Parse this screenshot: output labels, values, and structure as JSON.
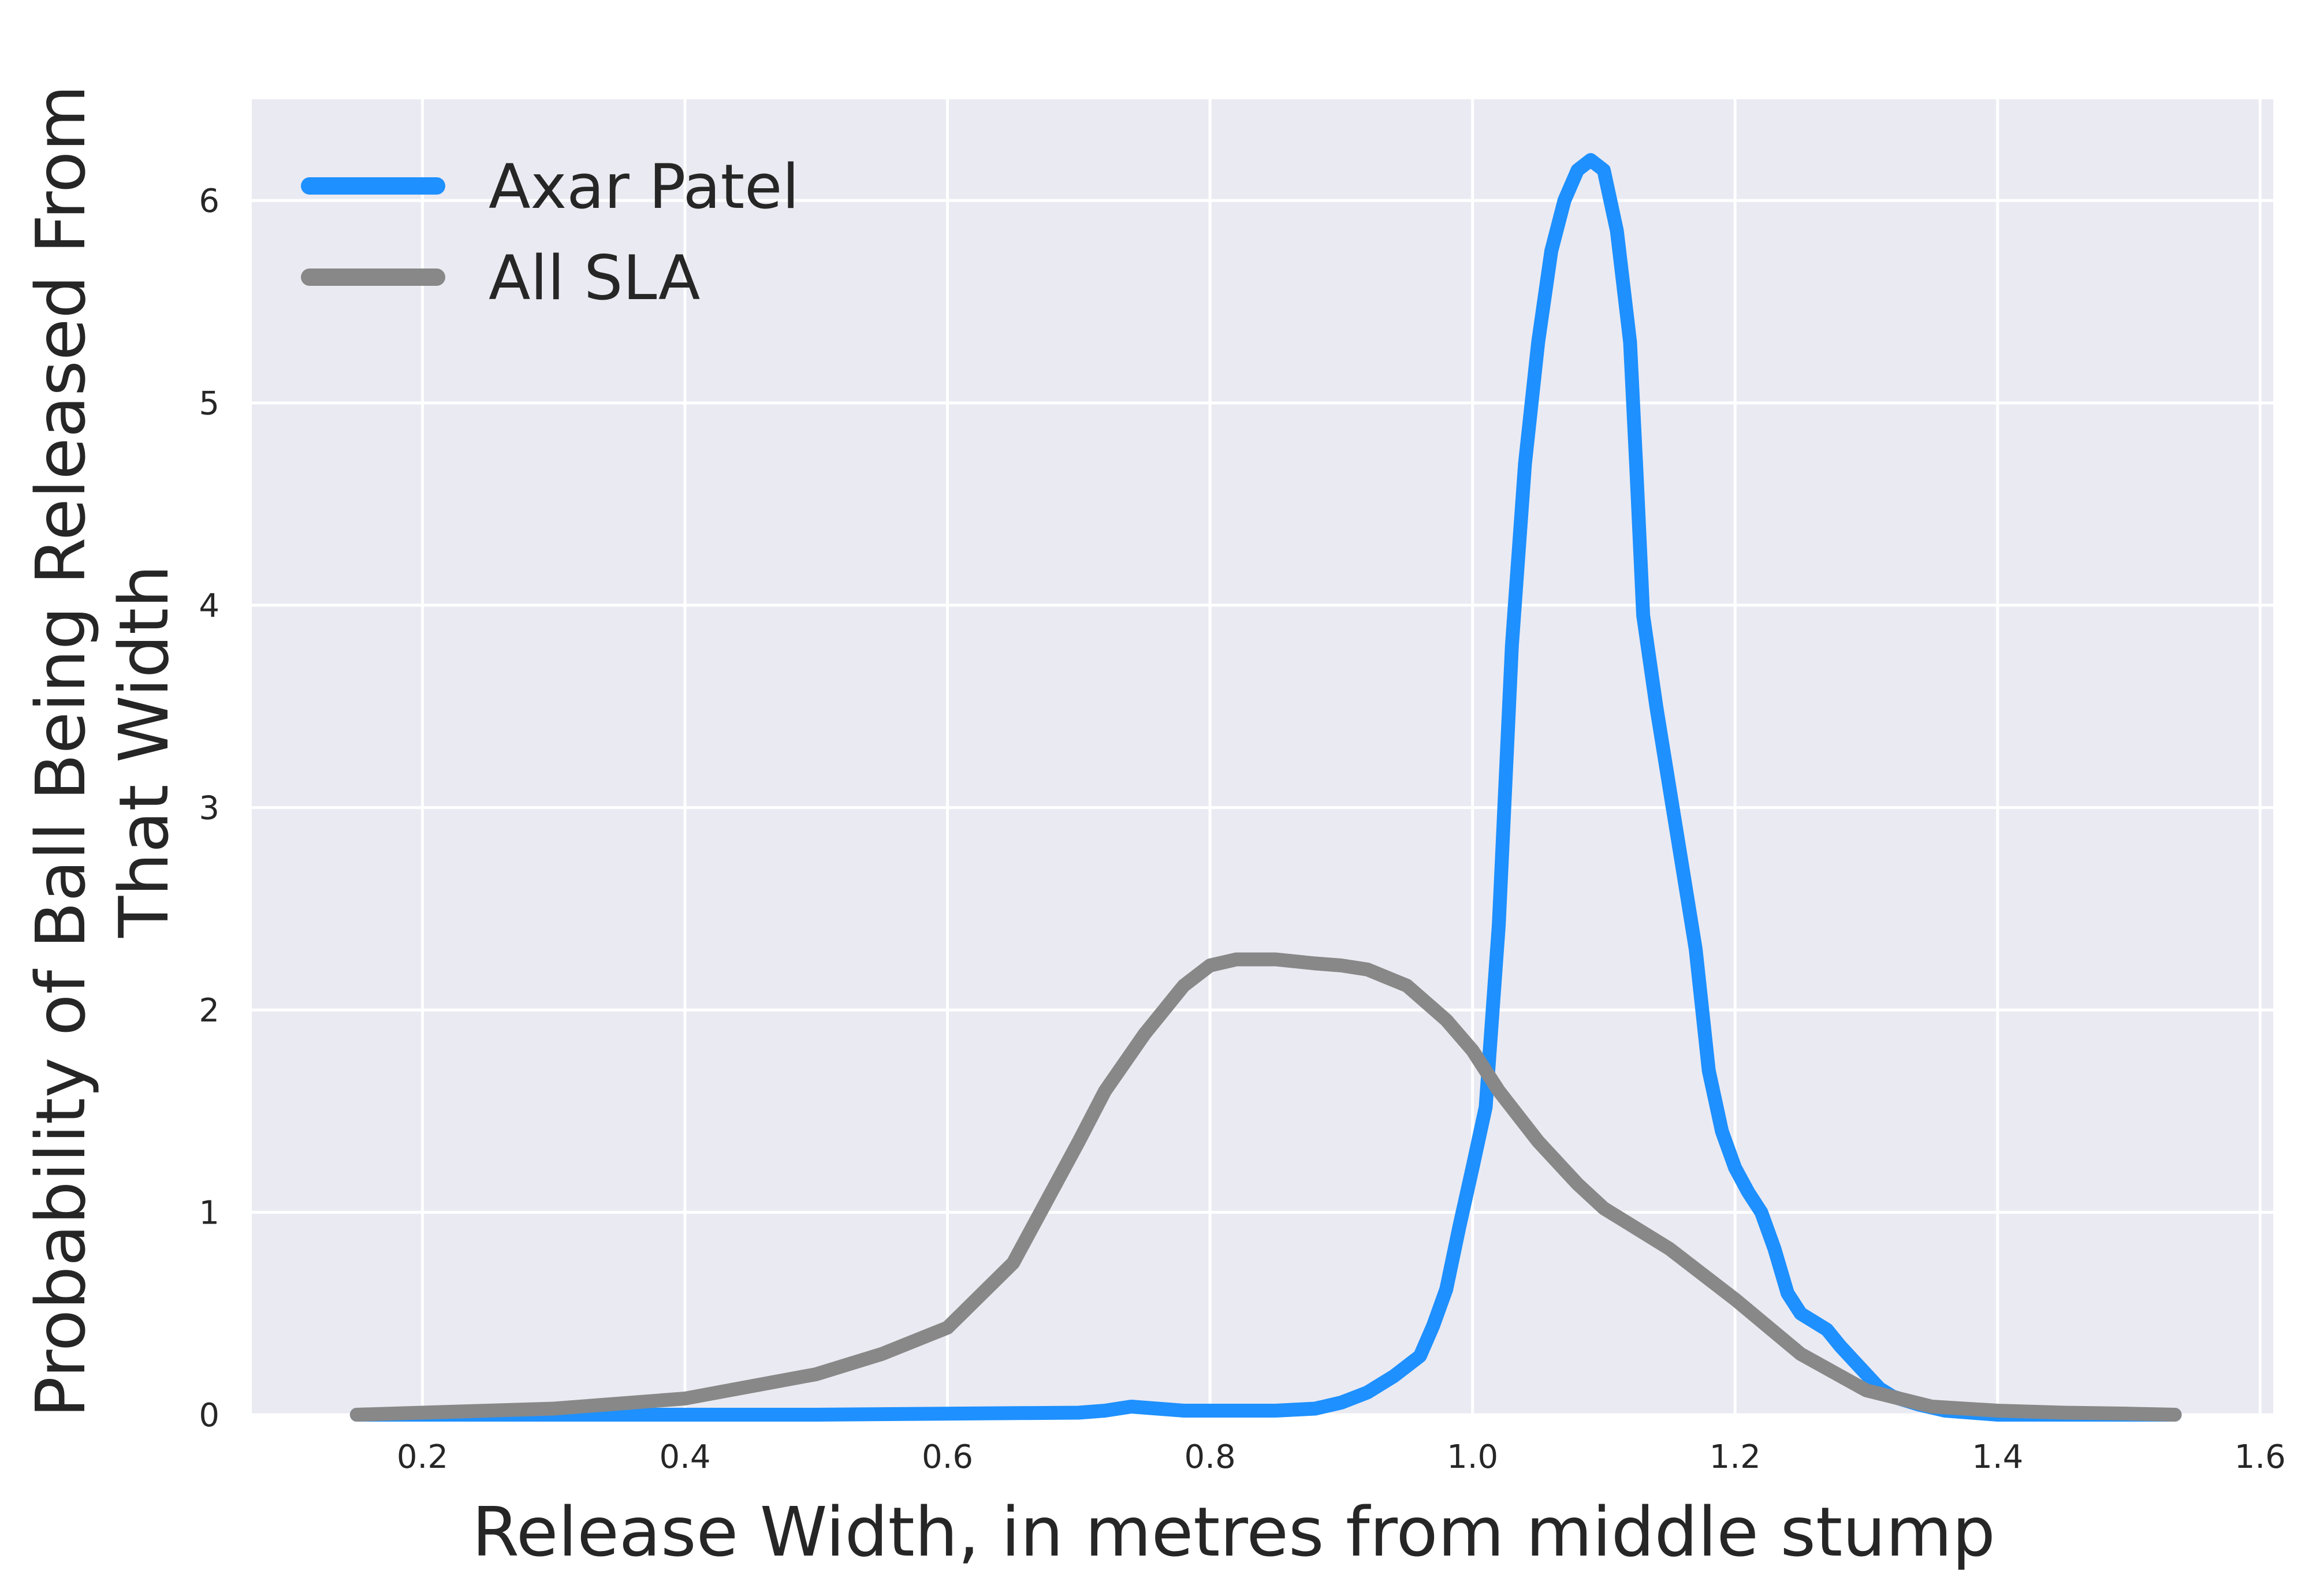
{
  "chart_data": {
    "type": "line",
    "title": "",
    "xlabel": "Release Width, in metres from middle stump",
    "ylabel_lines": [
      "Probability of Ball Being Released From",
      "That Width"
    ],
    "xlim": [
      0.07,
      1.61
    ],
    "ylim": [
      0,
      6.5
    ],
    "xticks": [
      0.2,
      0.4,
      0.6,
      0.8,
      1.0,
      1.2,
      1.4,
      1.6
    ],
    "xtick_labels": [
      "0.2",
      "0.4",
      "0.6",
      "0.8",
      "1.0",
      "1.2",
      "1.4",
      "1.6"
    ],
    "yticks": [
      0,
      1,
      2,
      3,
      4,
      5,
      6
    ],
    "ytick_labels": [
      "0",
      "1",
      "2",
      "3",
      "4",
      "5",
      "6"
    ],
    "grid": true,
    "legend_position": "upper-left",
    "background": "#EAEAF2",
    "series": [
      {
        "name": "Axar Patel",
        "color": "#1E90FF",
        "x": [
          0.15,
          0.3,
          0.5,
          0.7,
          0.72,
          0.74,
          0.76,
          0.78,
          0.85,
          0.88,
          0.9,
          0.92,
          0.94,
          0.96,
          0.97,
          0.98,
          0.99,
          1.0,
          1.01,
          1.02,
          1.03,
          1.04,
          1.05,
          1.06,
          1.07,
          1.08,
          1.09,
          1.1,
          1.11,
          1.12,
          1.125,
          1.13,
          1.14,
          1.15,
          1.16,
          1.17,
          1.18,
          1.19,
          1.2,
          1.21,
          1.22,
          1.23,
          1.24,
          1.25,
          1.27,
          1.28,
          1.29,
          1.3,
          1.31,
          1.32,
          1.34,
          1.36,
          1.38,
          1.4,
          1.45,
          1.5,
          1.535
        ],
        "y": [
          0,
          0,
          0,
          0.01,
          0.02,
          0.04,
          0.03,
          0.02,
          0.02,
          0.03,
          0.06,
          0.11,
          0.19,
          0.29,
          0.44,
          0.62,
          0.93,
          1.22,
          1.52,
          2.42,
          3.8,
          4.7,
          5.3,
          5.75,
          6.0,
          6.15,
          6.2,
          6.15,
          5.85,
          5.3,
          4.65,
          3.95,
          3.5,
          3.1,
          2.7,
          2.3,
          1.7,
          1.4,
          1.22,
          1.1,
          1.0,
          0.82,
          0.6,
          0.5,
          0.42,
          0.34,
          0.27,
          0.2,
          0.13,
          0.09,
          0.05,
          0.02,
          0.01,
          0.0,
          0.0,
          0.0,
          0.0
        ],
        "line_width": 3
      },
      {
        "name": "All SLA",
        "color": "#888888",
        "x": [
          0.15,
          0.3,
          0.4,
          0.45,
          0.5,
          0.55,
          0.6,
          0.65,
          0.7,
          0.72,
          0.75,
          0.78,
          0.8,
          0.82,
          0.85,
          0.88,
          0.9,
          0.92,
          0.95,
          0.98,
          1.0,
          1.02,
          1.05,
          1.08,
          1.1,
          1.12,
          1.15,
          1.2,
          1.25,
          1.3,
          1.35,
          1.4,
          1.45,
          1.5,
          1.535
        ],
        "y": [
          0,
          0.03,
          0.08,
          0.14,
          0.2,
          0.3,
          0.43,
          0.75,
          1.35,
          1.6,
          1.88,
          2.12,
          2.22,
          2.25,
          2.25,
          2.23,
          2.22,
          2.2,
          2.12,
          1.95,
          1.8,
          1.6,
          1.35,
          1.14,
          1.02,
          0.94,
          0.82,
          0.57,
          0.3,
          0.12,
          0.04,
          0.02,
          0.01,
          0.005,
          0.0
        ],
        "line_width": 3
      }
    ]
  }
}
